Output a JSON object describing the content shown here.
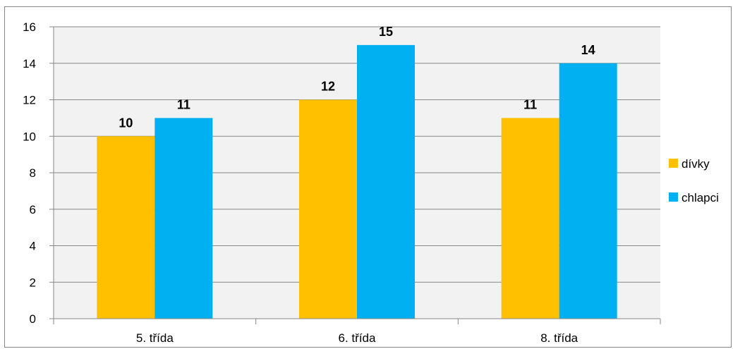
{
  "chart_data": {
    "type": "bar",
    "title": "",
    "xlabel": "",
    "ylabel": "",
    "categories": [
      "5. třída",
      "6. třída",
      "8. třída"
    ],
    "series": [
      {
        "name": "dívky",
        "values": [
          10,
          12,
          11
        ],
        "color": "#FFC000"
      },
      {
        "name": "chlapci",
        "values": [
          11,
          15,
          14
        ],
        "color": "#00B0F0"
      }
    ],
    "ylim": [
      0,
      16
    ],
    "yticks": [
      0,
      2,
      4,
      6,
      8,
      10,
      12,
      14,
      16
    ],
    "grid": true,
    "legend": "right",
    "plot_background": "#F2F2F2"
  }
}
